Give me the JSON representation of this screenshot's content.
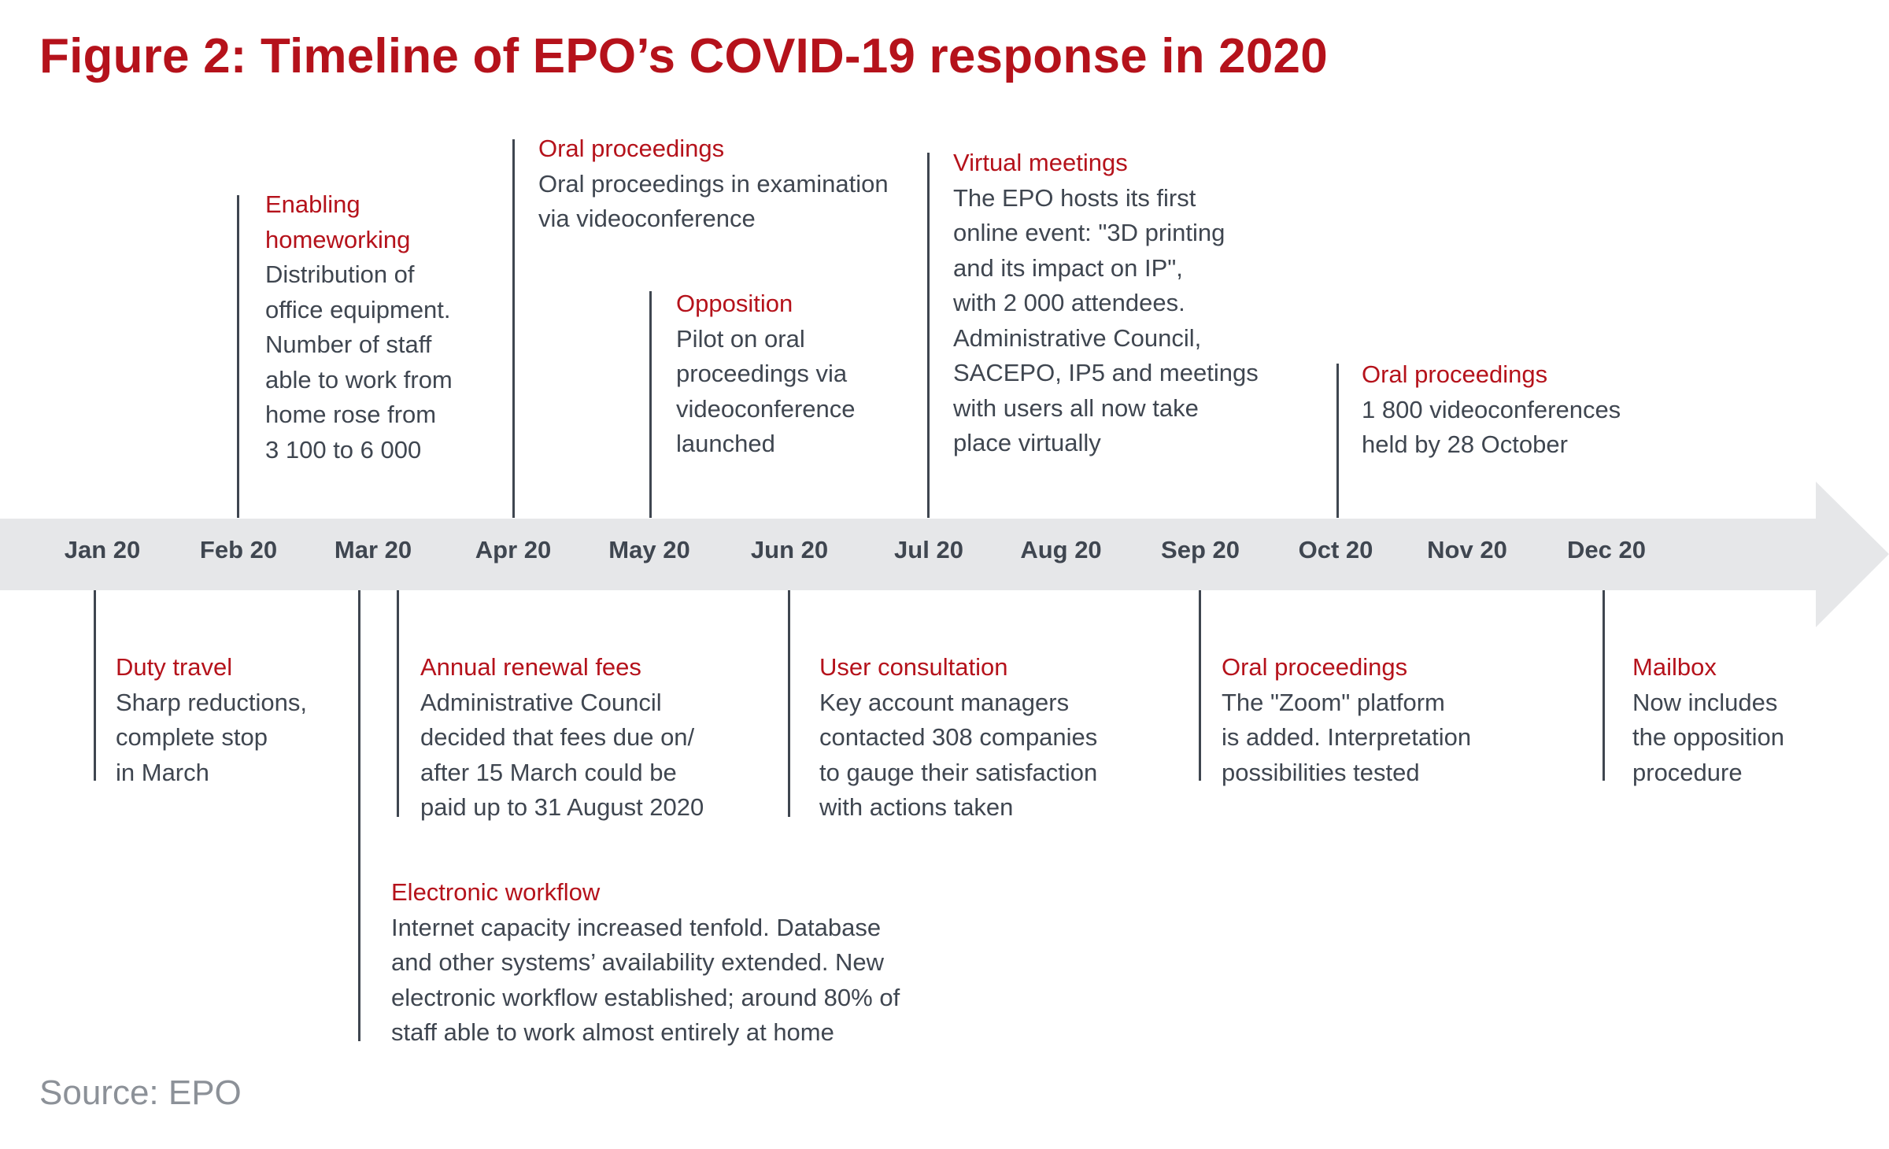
{
  "title": "Figure 2: Timeline of EPO’s COVID-19 response in 2020",
  "source": "Source: EPO",
  "colors": {
    "accent": "#b5121b",
    "text": "#3f4650",
    "band": "#e6e7e9",
    "muted": "#8c9198"
  },
  "months": [
    "Jan 20",
    "Feb 20",
    "Mar 20",
    "Apr 20",
    "May 20",
    "Jun 20",
    "Jul 20",
    "Aug 20",
    "Sep 20",
    "Oct 20",
    "Nov 20",
    "Dec 20"
  ],
  "events": {
    "enabling_homeworking": {
      "title_lines": [
        "Enabling",
        "homeworking"
      ],
      "text_lines": [
        "Distribution of",
        "office equipment.",
        "Number of staff",
        "able to work from",
        "home rose from",
        "3 100 to 6 000"
      ]
    },
    "oral_proceedings_apr": {
      "title_lines": [
        "Oral proceedings"
      ],
      "text_lines": [
        "Oral proceedings in examination",
        "via videoconference"
      ]
    },
    "opposition": {
      "title_lines": [
        "Opposition"
      ],
      "text_lines": [
        "Pilot on oral",
        "proceedings via",
        "videoconference",
        "launched"
      ]
    },
    "virtual_meetings": {
      "title_lines": [
        "Virtual meetings"
      ],
      "text_lines": [
        "The EPO hosts its first",
        "online event: \"3D printing",
        "and its impact on IP\",",
        "with 2 000 attendees.",
        "Administrative Council,",
        "SACEPO, IP5 and meetings",
        "with users all now take",
        "place virtually"
      ]
    },
    "oral_proceedings_oct": {
      "title_lines": [
        "Oral proceedings"
      ],
      "text_lines": [
        "1 800 videoconferences",
        "held by 28 October"
      ]
    },
    "duty_travel": {
      "title_lines": [
        "Duty travel"
      ],
      "text_lines": [
        "Sharp reductions,",
        "complete stop",
        "in March"
      ]
    },
    "annual_renewal_fees": {
      "title_lines": [
        "Annual renewal fees"
      ],
      "text_lines": [
        "Administrative Council",
        "decided that fees due on/",
        "after 15 March could be",
        "paid up to 31 August 2020"
      ]
    },
    "user_consultation": {
      "title_lines": [
        "User consultation"
      ],
      "text_lines": [
        "Key account managers",
        "contacted 308 companies",
        "to gauge their satisfaction",
        "with actions taken"
      ]
    },
    "oral_proceedings_sep": {
      "title_lines": [
        "Oral proceedings"
      ],
      "text_lines": [
        "The \"Zoom\" platform",
        "is added. Interpretation",
        "possibilities tested"
      ]
    },
    "mailbox": {
      "title_lines": [
        "Mailbox"
      ],
      "text_lines": [
        "Now includes",
        "the opposition",
        "procedure"
      ]
    },
    "electronic_workflow": {
      "title_lines": [
        "Electronic workflow"
      ],
      "text_lines": [
        "Internet capacity increased tenfold. Database",
        "and other systems’ availability extended. New",
        "electronic workflow established; around 80% of",
        "staff able to work almost entirely at home"
      ]
    }
  }
}
